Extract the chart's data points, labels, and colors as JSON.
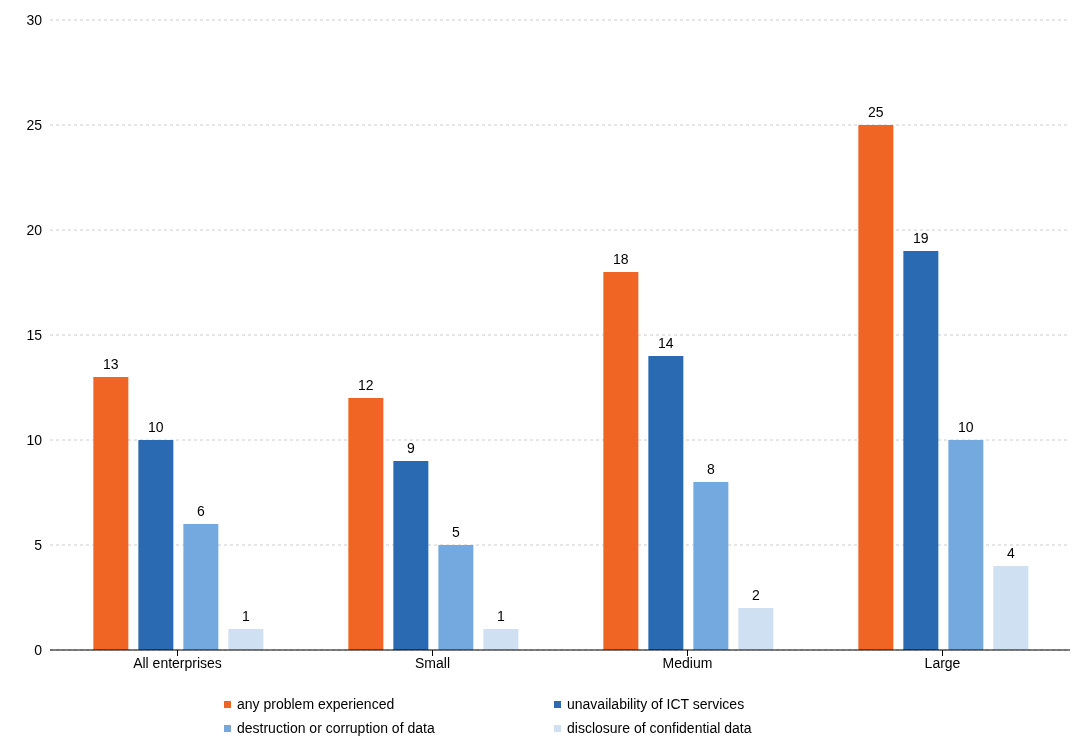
{
  "chart_data": {
    "type": "bar",
    "categories": [
      "All enterprises",
      "Small",
      "Medium",
      "Large"
    ],
    "series": [
      {
        "name": "any problem experienced",
        "color": "#f06424",
        "values": [
          13,
          12,
          18,
          25
        ]
      },
      {
        "name": "unavailability of ICT services",
        "color": "#2a6ab2",
        "values": [
          10,
          9,
          14,
          19
        ]
      },
      {
        "name": "destruction or corruption of data",
        "color": "#74a9df",
        "values": [
          6,
          5,
          8,
          10
        ]
      },
      {
        "name": "disclosure of confidential data",
        "color": "#cfe0f3",
        "values": [
          1,
          1,
          2,
          4
        ]
      }
    ],
    "ylim": [
      0,
      30
    ],
    "yticks": [
      0,
      5,
      10,
      15,
      20,
      25,
      30
    ],
    "grid": "y",
    "legend": "bottom",
    "data_labels": true
  }
}
